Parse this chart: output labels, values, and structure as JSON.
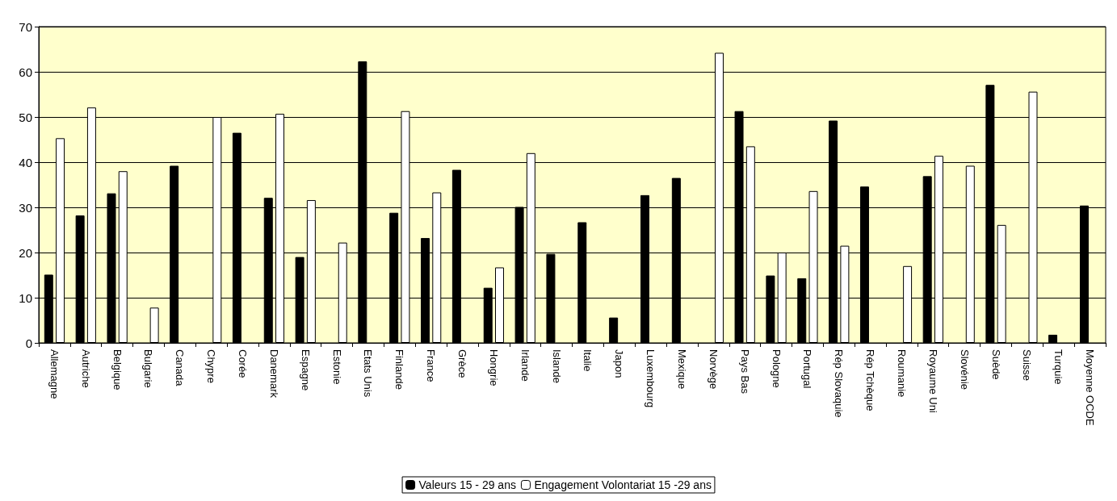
{
  "chart_data": {
    "type": "bar",
    "categories": [
      "Allemagne",
      "Autriche",
      "Belgique",
      "Bulgarie",
      "Canada",
      "Chypre",
      "Corée",
      "Danemark",
      "Espagne",
      "Estonie",
      "Etats Unis",
      "Finlande",
      "France",
      "Grèce",
      "Hongrie",
      "Irlande",
      "Islande",
      "Italie",
      "Japon",
      "Luxembourg",
      "Mexique",
      "Norvège",
      "Pays Bas",
      "Pologne",
      "Portugal",
      "Rép Slovaquie",
      "Rép Tchèque",
      "Roumanie",
      "Royaume Uni",
      "Slovénie",
      "Suède",
      "Suisse",
      "Turquie",
      "Moyenne OCDE"
    ],
    "series": [
      {
        "name": "Valeurs 15 - 29 ans",
        "color": "#000000",
        "values": [
          15.1,
          28.2,
          33.1,
          null,
          39.2,
          null,
          46.5,
          32.1,
          19.0,
          null,
          62.3,
          28.8,
          23.2,
          38.3,
          12.2,
          30.1,
          19.7,
          26.7,
          5.6,
          32.7,
          36.5,
          null,
          51.3,
          14.9,
          14.3,
          49.2,
          34.6,
          null,
          36.9,
          null,
          57.1,
          null,
          1.8,
          30.4
        ]
      },
      {
        "name": "Engagement Volontariat 15 -29 ans",
        "color": "#ffffff",
        "values": [
          45.3,
          52.1,
          38.0,
          7.8,
          null,
          50.0,
          null,
          50.7,
          31.6,
          22.2,
          null,
          51.3,
          33.3,
          null,
          16.7,
          42.0,
          null,
          null,
          null,
          null,
          null,
          64.2,
          43.5,
          20.0,
          33.6,
          21.5,
          null,
          17.0,
          41.4,
          39.2,
          26.1,
          55.6,
          null,
          null
        ]
      }
    ],
    "ylim": [
      0,
      70
    ],
    "yticks": [
      0,
      10,
      20,
      30,
      40,
      50,
      60,
      70
    ],
    "grid": "y",
    "legend": "bottom"
  }
}
